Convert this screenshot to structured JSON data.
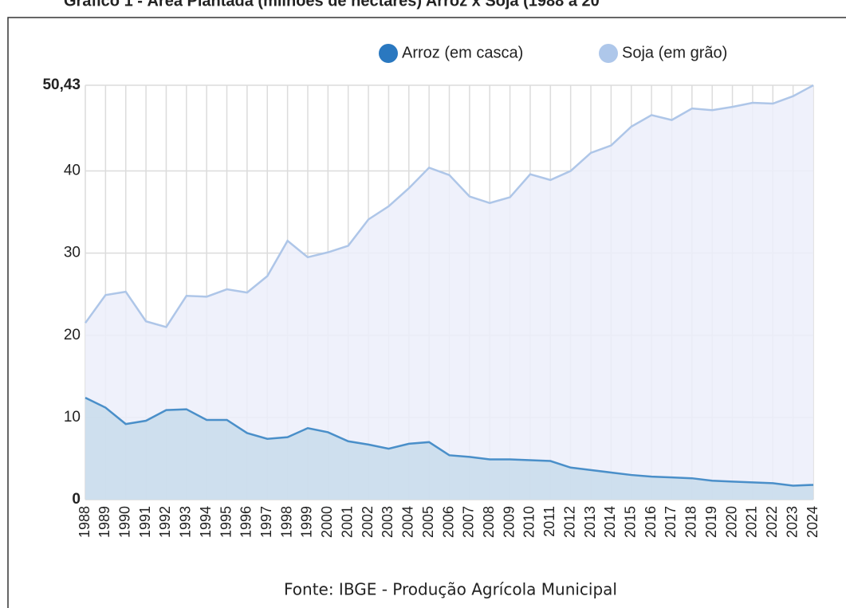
{
  "chart_data": {
    "type": "area",
    "title": "Gráfico 1 - Área Plantada (milhões de hectares) Arroz x Soja (1988 a 20",
    "source": "Fonte: IBGE - Produção Agrícola Municipal",
    "x": [
      1988,
      1989,
      1990,
      1991,
      1992,
      1993,
      1994,
      1995,
      1996,
      1997,
      1998,
      1999,
      2000,
      2001,
      2002,
      2003,
      2004,
      2005,
      2006,
      2007,
      2008,
      2009,
      2010,
      2011,
      2012,
      2013,
      2014,
      2015,
      2016,
      2017,
      2018,
      2019,
      2020,
      2021,
      2022,
      2023,
      2024
    ],
    "xlim": [
      1988,
      2024
    ],
    "series": [
      {
        "name": "Arroz (em casca)",
        "color": "#4a8fc9",
        "fill": "#c8dceb",
        "marker": "#2a78c0",
        "values": [
          12.4,
          11.2,
          9.2,
          9.6,
          10.9,
          11.0,
          9.7,
          9.7,
          8.1,
          7.4,
          7.6,
          8.7,
          8.2,
          7.1,
          6.7,
          6.2,
          6.8,
          7.0,
          5.4,
          5.2,
          4.9,
          4.9,
          4.8,
          4.7,
          3.9,
          3.6,
          3.3,
          3.0,
          2.8,
          2.7,
          2.6,
          2.3,
          2.2,
          2.1,
          2.0,
          1.7,
          1.8
        ]
      },
      {
        "name": "Soja (em grão)",
        "color": "#aec6e8",
        "fill": "#eceffa",
        "marker": "#aec7ea",
        "values": [
          21.5,
          24.9,
          25.3,
          21.7,
          21.0,
          24.8,
          24.7,
          25.6,
          25.2,
          27.2,
          31.5,
          29.5,
          30.1,
          30.9,
          34.1,
          35.7,
          37.9,
          40.4,
          39.5,
          36.9,
          36.1,
          36.8,
          39.6,
          38.9,
          40.0,
          42.2,
          43.1,
          45.4,
          46.8,
          46.2,
          47.6,
          47.4,
          47.8,
          48.3,
          48.2,
          49.1,
          50.43
        ]
      }
    ],
    "ylim": [
      0,
      50.43
    ],
    "yticks": [
      0,
      10,
      20,
      30,
      40,
      {
        "value": 50.43,
        "label": "50,43"
      }
    ],
    "grid": true,
    "legend": "top-right"
  }
}
